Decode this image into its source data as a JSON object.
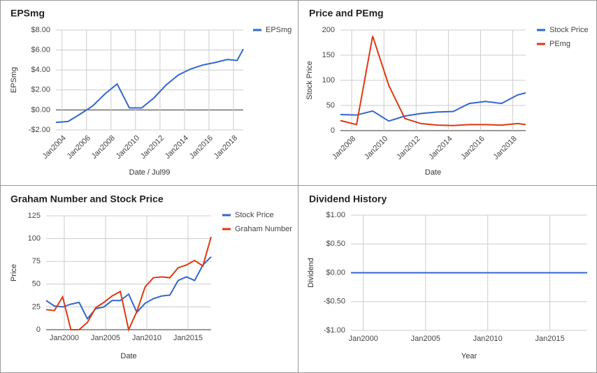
{
  "chart_data": [
    {
      "type": "line",
      "title": "EPSmg",
      "x_label": "Date / Jul99",
      "y_label": "EPSmg",
      "x": [
        2003.5,
        2004.5,
        2005.5,
        2006.5,
        2007.5,
        2008.5,
        2009.5,
        2010.5,
        2011.5,
        2012.5,
        2013.5,
        2014.5,
        2015.5,
        2016.5,
        2017.5,
        2018.3,
        2018.8
      ],
      "series": [
        {
          "name": "EPSmg",
          "color": "#3366cc",
          "values": [
            -1.25,
            -1.15,
            -0.4,
            0.4,
            1.6,
            2.6,
            0.2,
            0.2,
            1.2,
            2.5,
            3.5,
            4.1,
            4.5,
            4.75,
            5.05,
            4.95,
            6.1
          ]
        }
      ],
      "xlim": [
        2003.5,
        2018.8
      ],
      "xticks": [
        {
          "value": 2004,
          "label": "Jan2004"
        },
        {
          "value": 2006,
          "label": "Jan2006"
        },
        {
          "value": 2008,
          "label": "Jan2008"
        },
        {
          "value": 2010,
          "label": "Jan2010"
        },
        {
          "value": 2012,
          "label": "Jan2012"
        },
        {
          "value": 2014,
          "label": "Jan2014"
        },
        {
          "value": 2016,
          "label": "Jan2016"
        },
        {
          "value": 2018,
          "label": "Jan2018"
        }
      ],
      "ylim": [
        -2,
        8
      ],
      "yticks": [
        {
          "value": -2,
          "label": "-$2.00"
        },
        {
          "value": 0,
          "label": "$0.00"
        },
        {
          "value": 2,
          "label": "$2.00"
        },
        {
          "value": 4,
          "label": "$4.00"
        },
        {
          "value": 6,
          "label": "$6.00"
        },
        {
          "value": 8,
          "label": "$8.00"
        }
      ],
      "grid": true,
      "legend": "right",
      "rotate_x_labels": true
    },
    {
      "type": "line",
      "title": "Price and PEmg",
      "x_label": "Date",
      "y_label": "Stock Price",
      "x": [
        2007.3,
        2008.3,
        2009.3,
        2010.3,
        2011.3,
        2012.3,
        2013.3,
        2014.3,
        2015.3,
        2016.3,
        2017.3,
        2018.3,
        2018.8
      ],
      "series": [
        {
          "name": "Stock Price",
          "color": "#3366cc",
          "values": [
            32,
            31,
            39,
            19,
            29,
            34,
            37,
            38,
            54,
            58,
            54,
            71,
            75
          ]
        },
        {
          "name": "PEmg",
          "color": "#dc3912",
          "values": [
            20,
            12,
            188,
            90,
            24,
            14,
            11,
            10,
            12,
            12,
            11,
            14,
            12
          ]
        }
      ],
      "xlim": [
        2007.3,
        2018.8
      ],
      "xticks": [
        {
          "value": 2008,
          "label": "Jan2008"
        },
        {
          "value": 2010,
          "label": "Jan2010"
        },
        {
          "value": 2012,
          "label": "Jan2012"
        },
        {
          "value": 2014,
          "label": "Jan2014"
        },
        {
          "value": 2016,
          "label": "Jan2016"
        },
        {
          "value": 2018,
          "label": "Jan2018"
        }
      ],
      "ylim": [
        0,
        200
      ],
      "yticks": [
        0,
        50,
        100,
        150,
        200
      ],
      "grid": true,
      "legend": "right",
      "rotate_x_labels": true
    },
    {
      "type": "line",
      "title": "Graham Number and Stock Price",
      "x_label": "Date",
      "y_label": "Price",
      "x": [
        1997.8,
        1998.8,
        1999.8,
        2000.8,
        2001.8,
        2002.8,
        2003.8,
        2004.8,
        2005.8,
        2006.8,
        2007.8,
        2008.8,
        2009.8,
        2010.8,
        2011.8,
        2012.8,
        2013.8,
        2014.8,
        2015.8,
        2016.8,
        2017.8
      ],
      "series": [
        {
          "name": "Stock Price",
          "color": "#3366cc",
          "values": [
            32,
            26,
            25,
            28,
            30,
            12,
            23,
            25,
            32,
            32,
            39,
            19,
            29,
            34,
            37,
            38,
            54,
            58,
            54,
            71,
            80
          ]
        },
        {
          "name": "Graham Number",
          "color": "#dc3912",
          "values": [
            22,
            21,
            36,
            0,
            0,
            8,
            24,
            30,
            37,
            42,
            0,
            20,
            47,
            57,
            58,
            57,
            68,
            71,
            76,
            70,
            102
          ]
        }
      ],
      "xlim": [
        1997.8,
        2017.8
      ],
      "xticks": [
        {
          "value": 2000,
          "label": "Jan2000"
        },
        {
          "value": 2005,
          "label": "Jan2005"
        },
        {
          "value": 2010,
          "label": "Jan2010"
        },
        {
          "value": 2015,
          "label": "Jan2015"
        }
      ],
      "ylim": [
        0,
        125
      ],
      "yticks": [
        0,
        25,
        50,
        75,
        100,
        125
      ],
      "grid": true,
      "legend": "right",
      "rotate_x_labels": false
    },
    {
      "type": "line",
      "title": "Dividend History",
      "x_label": "Year",
      "y_label": "Dividend",
      "x": [
        1999,
        2018
      ],
      "series": [
        {
          "color": "#3366cc",
          "values": [
            0,
            0
          ]
        }
      ],
      "xlim": [
        1999,
        2018
      ],
      "xticks": [
        {
          "value": 2000,
          "label": "Jan2000"
        },
        {
          "value": 2005,
          "label": "Jan2005"
        },
        {
          "value": 2010,
          "label": "Jan2010"
        },
        {
          "value": 2015,
          "label": "Jan2015"
        }
      ],
      "ylim": [
        -1,
        1
      ],
      "yticks": [
        {
          "value": -1,
          "label": "-$1.00"
        },
        {
          "value": -0.5,
          "label": "-$0.50"
        },
        {
          "value": 0,
          "label": "$0.00"
        },
        {
          "value": 0.5,
          "label": "$0.50"
        },
        {
          "value": 1,
          "label": "$1.00"
        }
      ],
      "grid": true,
      "rotate_x_labels": false
    }
  ]
}
